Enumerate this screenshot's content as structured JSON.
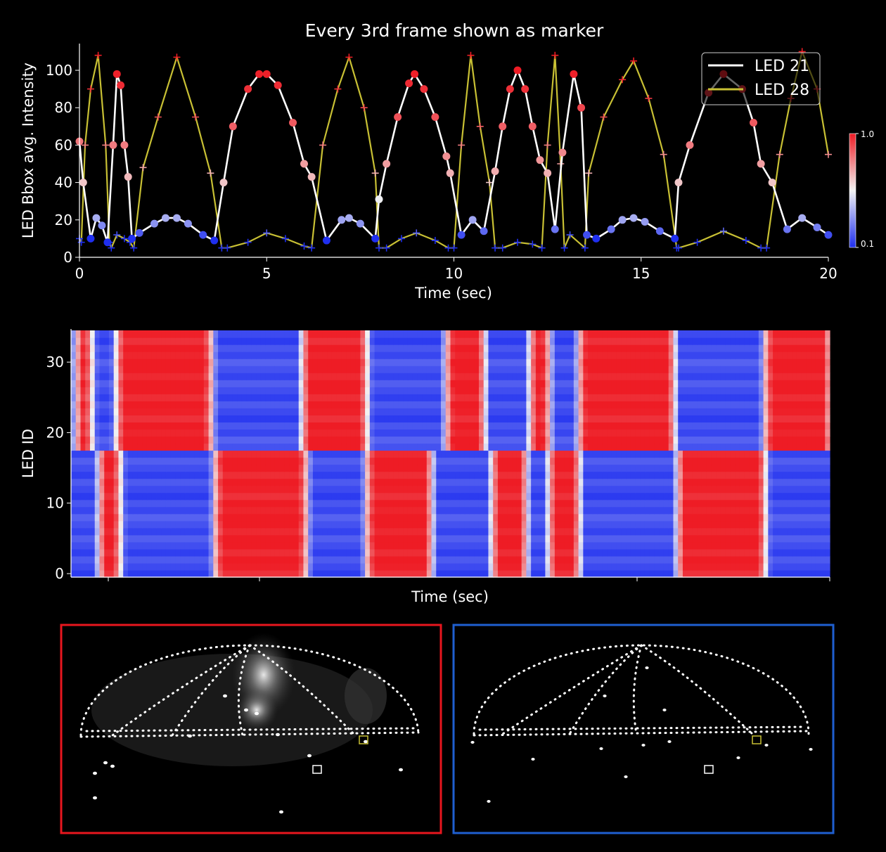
{
  "top_chart": {
    "title": "Every 3rd frame shown as marker",
    "xlabel": "Time (sec)",
    "ylabel": "LED Bbox avg. Intensity",
    "xlim": [
      0,
      20
    ],
    "ylim": [
      0,
      110
    ],
    "xticks": [
      "0",
      "5",
      "10",
      "15",
      "20"
    ],
    "yticks": [
      "0",
      "20",
      "40",
      "60",
      "80",
      "100"
    ],
    "legend": [
      {
        "name": "LED 21",
        "color": "#ffffff"
      },
      {
        "name": "LED 28",
        "color": "#c8c034"
      }
    ],
    "colorbar": {
      "max_label": "1.0",
      "min_label": "0.1",
      "high_color": "#ee1c25",
      "mid_color": "#f2f2f2",
      "low_color": "#1f2ff0"
    }
  },
  "chart_data": [
    {
      "type": "line",
      "title": "Every 3rd frame shown as marker",
      "xlabel": "Time (sec)",
      "ylabel": "LED Bbox avg. Intensity",
      "xlim": [
        0,
        20
      ],
      "ylim": [
        0,
        110
      ],
      "legend_position": "top-right",
      "series": [
        {
          "name": "LED 21",
          "marker": "circle",
          "color": "#ffffff",
          "x": [
            0,
            0.1,
            0.3,
            0.45,
            0.6,
            0.75,
            0.9,
            1.0,
            1.1,
            1.2,
            1.3,
            1.4,
            1.6,
            2.0,
            2.3,
            2.6,
            2.9,
            3.3,
            3.6,
            3.85,
            4.1,
            4.5,
            4.8,
            5.0,
            5.3,
            5.7,
            6.0,
            6.2,
            6.6,
            7.0,
            7.2,
            7.5,
            7.9,
            8.0,
            8.2,
            8.5,
            8.8,
            8.95,
            9.2,
            9.5,
            9.8,
            9.9,
            10.2,
            10.5,
            10.8,
            11.1,
            11.3,
            11.5,
            11.7,
            11.9,
            12.1,
            12.3,
            12.5,
            12.7,
            12.9,
            13.2,
            13.4,
            13.55,
            13.8,
            14.2,
            14.5,
            14.8,
            15.1,
            15.5,
            15.9,
            16.0,
            16.3,
            16.8,
            17.2,
            17.7,
            18.0,
            18.2,
            18.5,
            18.9,
            19.3,
            19.7,
            20.0
          ],
          "y": [
            62,
            40,
            10,
            21,
            17,
            8,
            60,
            98,
            92,
            60,
            43,
            10,
            13,
            18,
            21,
            21,
            18,
            12,
            9,
            40,
            70,
            90,
            98,
            98,
            92,
            72,
            50,
            43,
            9,
            20,
            21,
            18,
            10,
            31,
            50,
            75,
            93,
            98,
            90,
            75,
            54,
            45,
            12,
            20,
            14,
            46,
            70,
            90,
            100,
            90,
            70,
            52,
            45,
            15,
            56,
            98,
            80,
            12,
            10,
            15,
            20,
            21,
            19,
            14,
            10,
            40,
            60,
            88,
            98,
            90,
            72,
            50,
            40,
            15,
            21,
            16,
            12
          ]
        },
        {
          "name": "LED 28",
          "marker": "plus",
          "color": "#c8c034",
          "x": [
            0,
            0.05,
            0.15,
            0.3,
            0.5,
            0.7,
            0.8,
            0.85,
            1.0,
            1.2,
            1.35,
            1.45,
            1.7,
            2.1,
            2.6,
            3.1,
            3.5,
            3.8,
            3.95,
            4.5,
            5.0,
            5.5,
            6.0,
            6.2,
            6.5,
            6.9,
            7.2,
            7.6,
            7.9,
            8.0,
            8.2,
            8.6,
            9.0,
            9.5,
            9.85,
            10.0,
            10.2,
            10.45,
            10.7,
            10.95,
            11.1,
            11.3,
            11.7,
            12.1,
            12.35,
            12.5,
            12.7,
            12.85,
            12.95,
            13.1,
            13.5,
            13.6,
            14.0,
            14.5,
            14.8,
            15.2,
            15.6,
            15.95,
            16.0,
            16.5,
            17.2,
            17.8,
            18.2,
            18.35,
            18.7,
            19.0,
            19.3,
            19.7,
            20.0
          ],
          "y": [
            10,
            8,
            60,
            90,
            108,
            60,
            8,
            5,
            12,
            10,
            8,
            5,
            48,
            75,
            107,
            75,
            45,
            5,
            5,
            8,
            13,
            10,
            6,
            5,
            60,
            90,
            107,
            80,
            45,
            5,
            5,
            10,
            13,
            9,
            5,
            5,
            60,
            108,
            70,
            40,
            5,
            5,
            8,
            7,
            5,
            60,
            108,
            50,
            5,
            12,
            5,
            45,
            75,
            95,
            105,
            85,
            55,
            5,
            5,
            8,
            14,
            9,
            5,
            5,
            55,
            85,
            110,
            90,
            55
          ]
        }
      ]
    },
    {
      "type": "heatmap",
      "xlabel": "Time (sec)",
      "ylabel": "LED ID",
      "ylim": [
        0,
        34
      ],
      "yticks": [
        "0",
        "10",
        "20",
        "30"
      ],
      "row_split": 18,
      "upper_rows_high_intervals": [
        [
          0.15,
          0.55
        ],
        [
          1.2,
          3.7
        ],
        [
          6.1,
          7.8
        ],
        [
          9.9,
          10.9
        ],
        [
          12.1,
          12.6
        ],
        [
          13.4,
          15.9
        ],
        [
          18.3,
          20.0
        ]
      ],
      "lower_rows_high_intervals": [
        [
          0.75,
          1.3
        ],
        [
          3.8,
          6.2
        ],
        [
          7.8,
          9.5
        ],
        [
          11.1,
          12.0
        ],
        [
          12.6,
          13.4
        ],
        [
          16.0,
          18.3
        ]
      ]
    }
  ],
  "bottom_panels": [
    {
      "frame_color": "#e8161e"
    },
    {
      "frame_color": "#1f5fd0"
    }
  ]
}
